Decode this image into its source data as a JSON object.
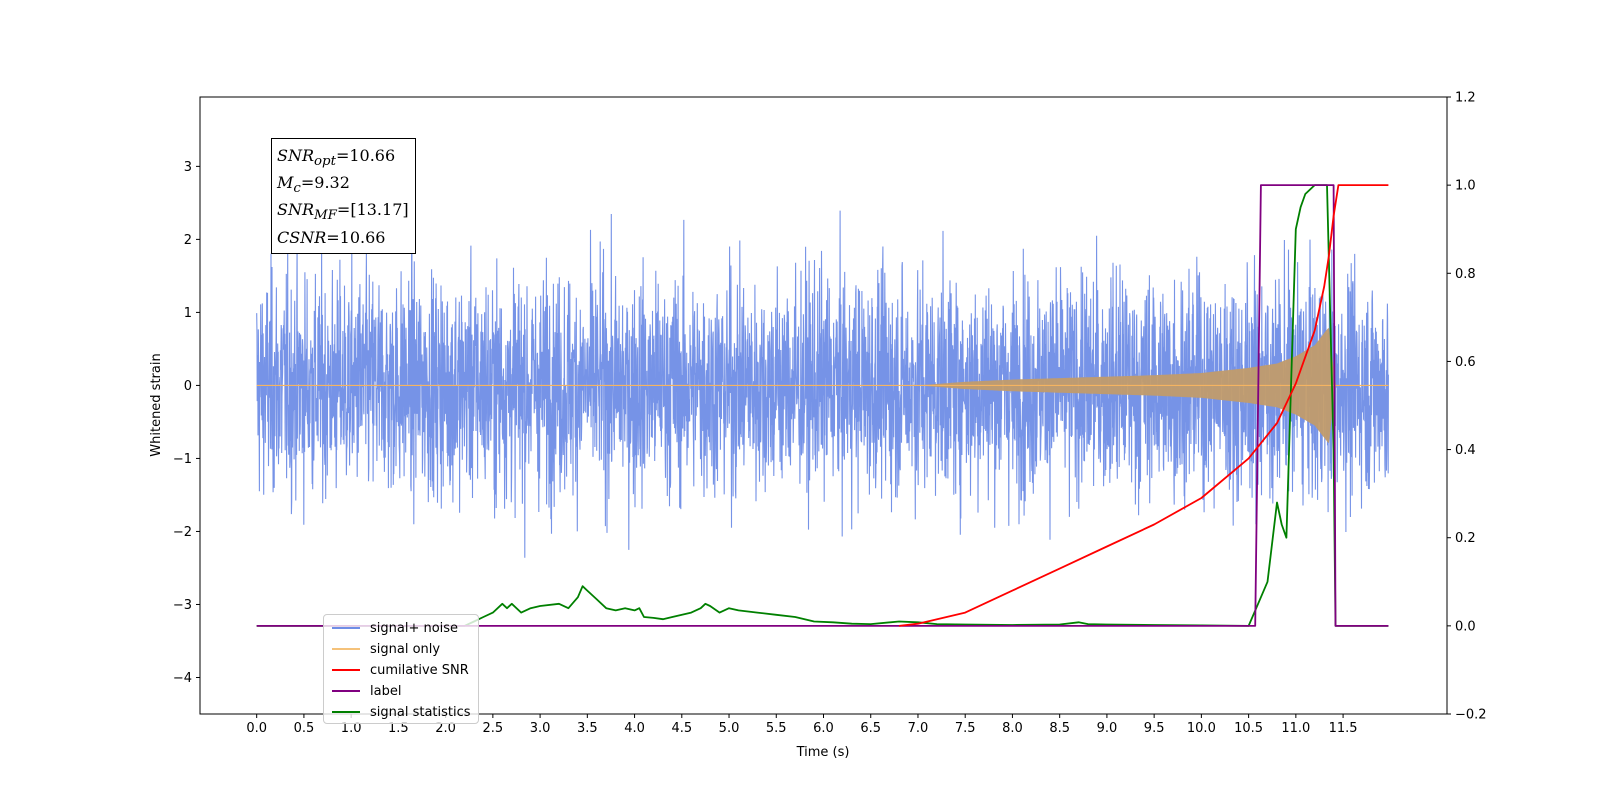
{
  "chart_data": {
    "type": "line",
    "xlabel": "Time (s)",
    "ylabel_left": "Whitened strain",
    "ylabel_right": "",
    "xlim": [
      -0.6,
      12.6
    ],
    "ylim_left": [
      -4.5,
      3.95
    ],
    "ylim_right": [
      -0.2,
      1.2
    ],
    "x_ticks": [
      "0.0",
      "0.5",
      "1.0",
      "1.5",
      "2.0",
      "2.5",
      "3.0",
      "3.5",
      "4.0",
      "4.5",
      "5.0",
      "5.5",
      "6.0",
      "6.5",
      "7.0",
      "7.5",
      "8.0",
      "8.5",
      "9.0",
      "9.5",
      "10.0",
      "10.5",
      "11.0",
      "11.5"
    ],
    "y_ticks_left": [
      "3",
      "2",
      "1",
      "0",
      "−1",
      "−2",
      "−3",
      "−4"
    ],
    "y_ticks_right": [
      "1.2",
      "1.0",
      "0.8",
      "0.6",
      "0.4",
      "0.2",
      "0.0",
      "−0.2"
    ],
    "grid": false,
    "legend_position": "lower-left",
    "annotation": [
      {
        "base": "SNR",
        "sub": "opt",
        "value": "=10.66"
      },
      {
        "base": "M",
        "sub": "c",
        "value": "=9.32"
      },
      {
        "base": "SNR",
        "sub": "MF",
        "value": "=[13.17]"
      },
      {
        "base": "CSNR",
        "sub": "",
        "value": "=10.66"
      }
    ],
    "series": [
      {
        "name": "signal+ noise",
        "axis": "left",
        "color": "#6f8de6",
        "note_shape": "white noise, std ~0.75, roughly within [-3.5, 3.6] over x 0.0–11.98",
        "x_range": [
          0.0,
          11.98
        ]
      },
      {
        "name": "signal only",
        "axis": "left",
        "color": "#f5b461",
        "chirp_x": [
          0.0,
          7.0,
          7.5,
          8.0,
          8.5,
          9.0,
          9.5,
          10.0,
          10.5,
          10.8,
          11.0,
          11.2,
          11.35,
          11.42,
          11.5,
          11.98
        ],
        "chirp_envelope": [
          0.0,
          0.0,
          0.05,
          0.08,
          0.1,
          0.12,
          0.14,
          0.17,
          0.24,
          0.3,
          0.4,
          0.55,
          0.8,
          0.0,
          0.0,
          0.0
        ]
      },
      {
        "name": "cumilative SNR",
        "axis": "right",
        "color": "#ff0000",
        "x": [
          6.8,
          7.0,
          7.5,
          8.0,
          8.5,
          9.0,
          9.5,
          10.0,
          10.5,
          10.8,
          11.0,
          11.2,
          11.3,
          11.35,
          11.4,
          11.45,
          11.98
        ],
        "y": [
          0.0,
          0.005,
          0.03,
          0.08,
          0.13,
          0.18,
          0.23,
          0.29,
          0.38,
          0.46,
          0.55,
          0.67,
          0.77,
          0.84,
          0.93,
          1.0,
          1.0
        ]
      },
      {
        "name": "label",
        "axis": "right",
        "color": "#800080",
        "x": [
          0.0,
          10.57,
          10.63,
          11.4,
          11.42,
          11.98
        ],
        "y": [
          0.0,
          0.0,
          1.0,
          1.0,
          0.0,
          0.0
        ]
      },
      {
        "name": "signal statistics",
        "axis": "right",
        "color": "#008000",
        "x": [
          0.0,
          2.2,
          2.3,
          2.4,
          2.5,
          2.6,
          2.65,
          2.7,
          2.8,
          2.9,
          3.0,
          3.2,
          3.3,
          3.4,
          3.45,
          3.5,
          3.6,
          3.7,
          3.8,
          3.9,
          4.0,
          4.05,
          4.1,
          4.2,
          4.3,
          4.4,
          4.6,
          4.7,
          4.75,
          4.8,
          4.9,
          5.0,
          5.1,
          5.3,
          5.5,
          5.7,
          5.9,
          6.1,
          6.3,
          6.5,
          6.8,
          7.0,
          7.2,
          7.5,
          8.0,
          8.5,
          8.7,
          8.8,
          9.0,
          9.5,
          10.0,
          10.5,
          10.6,
          10.7,
          10.8,
          10.85,
          10.9,
          10.95,
          11.0,
          11.05,
          11.1,
          11.2,
          11.33,
          11.4,
          11.42,
          11.98
        ],
        "y": [
          0.0,
          0.0,
          0.01,
          0.02,
          0.03,
          0.05,
          0.04,
          0.05,
          0.03,
          0.04,
          0.045,
          0.05,
          0.04,
          0.065,
          0.09,
          0.08,
          0.06,
          0.04,
          0.035,
          0.04,
          0.035,
          0.04,
          0.02,
          0.018,
          0.015,
          0.02,
          0.03,
          0.04,
          0.05,
          0.045,
          0.03,
          0.04,
          0.035,
          0.03,
          0.025,
          0.02,
          0.01,
          0.008,
          0.005,
          0.004,
          0.01,
          0.008,
          0.004,
          0.003,
          0.002,
          0.003,
          0.008,
          0.004,
          0.003,
          0.002,
          0.001,
          0.0,
          0.05,
          0.1,
          0.28,
          0.23,
          0.2,
          0.55,
          0.9,
          0.95,
          0.98,
          1.0,
          1.0,
          0.4,
          0.0,
          0.0
        ]
      }
    ]
  }
}
